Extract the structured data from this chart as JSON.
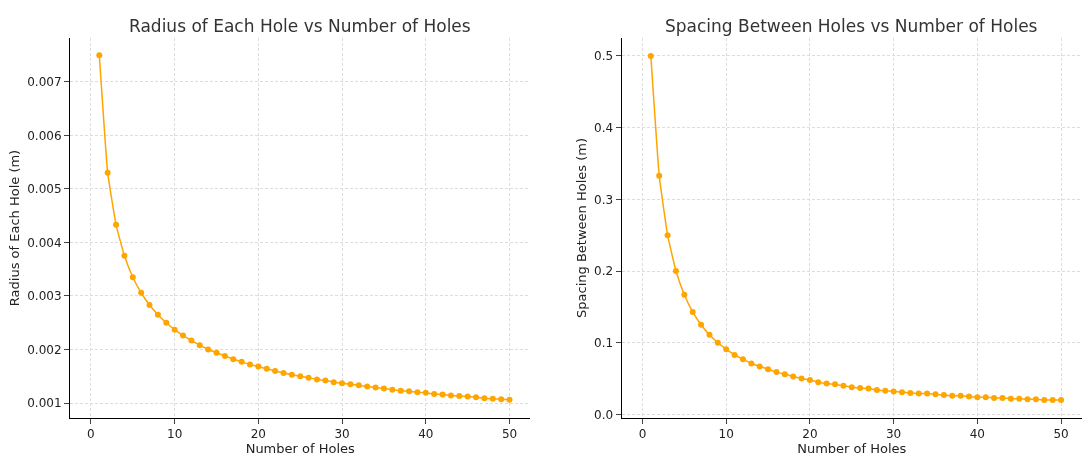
{
  "chart_data": [
    {
      "type": "line",
      "title": "Radius of Each Hole vs Number of Holes",
      "xlabel": "Number of Holes",
      "ylabel": "Radius of Each Hole (m)",
      "x": [
        1,
        2,
        3,
        4,
        5,
        6,
        7,
        8,
        9,
        10,
        11,
        12,
        13,
        14,
        15,
        16,
        17,
        18,
        19,
        20,
        21,
        22,
        23,
        24,
        25,
        26,
        27,
        28,
        29,
        30,
        31,
        32,
        33,
        34,
        35,
        36,
        37,
        38,
        39,
        40,
        41,
        42,
        43,
        44,
        45,
        46,
        47,
        48,
        49,
        50
      ],
      "series": [
        {
          "color": "#ffa500",
          "values": [
            0.0075,
            0.0053,
            0.00433,
            0.00375,
            0.00335,
            0.00306,
            0.00283,
            0.00265,
            0.0025,
            0.00237,
            0.00226,
            0.00217,
            0.00208,
            0.002,
            0.00194,
            0.00188,
            0.00182,
            0.00177,
            0.00172,
            0.00168,
            0.00164,
            0.0016,
            0.00156,
            0.00153,
            0.0015,
            0.00147,
            0.00144,
            0.00142,
            0.00139,
            0.00137,
            0.00135,
            0.00133,
            0.00131,
            0.00129,
            0.00127,
            0.00125,
            0.00123,
            0.00122,
            0.0012,
            0.00119,
            0.00117,
            0.00116,
            0.00114,
            0.00113,
            0.00112,
            0.00111,
            0.00109,
            0.00108,
            0.00107,
            0.00106
          ]
        }
      ],
      "xlim": [
        -2.5,
        52.5
      ],
      "xticks": [
        0,
        10,
        20,
        30,
        40,
        50
      ],
      "ylim": [
        0.00072,
        0.00782
      ],
      "yticks": [
        0.001,
        0.002,
        0.003,
        0.004,
        0.005,
        0.006,
        0.007
      ],
      "grid": true,
      "marker": "circle",
      "line_style": "solid"
    },
    {
      "type": "line",
      "title": "Spacing Between Holes vs Number of Holes",
      "xlabel": "Number of Holes",
      "ylabel": "Spacing Between Holes (m)",
      "x": [
        1,
        2,
        3,
        4,
        5,
        6,
        7,
        8,
        9,
        10,
        11,
        12,
        13,
        14,
        15,
        16,
        17,
        18,
        19,
        20,
        21,
        22,
        23,
        24,
        25,
        26,
        27,
        28,
        29,
        30,
        31,
        32,
        33,
        34,
        35,
        36,
        37,
        38,
        39,
        40,
        41,
        42,
        43,
        44,
        45,
        46,
        47,
        48,
        49,
        50
      ],
      "series": [
        {
          "color": "#ffa500",
          "values": [
            0.5,
            0.333,
            0.25,
            0.2,
            0.167,
            0.143,
            0.125,
            0.111,
            0.1,
            0.091,
            0.083,
            0.077,
            0.071,
            0.067,
            0.063,
            0.059,
            0.056,
            0.053,
            0.05,
            0.048,
            0.045,
            0.043,
            0.042,
            0.04,
            0.038,
            0.037,
            0.036,
            0.034,
            0.033,
            0.032,
            0.031,
            0.03,
            0.029,
            0.029,
            0.028,
            0.027,
            0.026,
            0.026,
            0.025,
            0.024,
            0.024,
            0.023,
            0.023,
            0.022,
            0.022,
            0.021,
            0.021,
            0.02,
            0.02,
            0.02
          ]
        }
      ],
      "xlim": [
        -2.5,
        52.5
      ],
      "xticks": [
        0,
        10,
        20,
        30,
        40,
        50
      ],
      "ylim": [
        -0.005,
        0.525
      ],
      "yticks": [
        {
          "value": 0,
          "label": "0.0"
        },
        0.1,
        0.2,
        0.3,
        0.4,
        0.5
      ],
      "grid": true,
      "marker": "circle",
      "line_style": "solid"
    }
  ]
}
